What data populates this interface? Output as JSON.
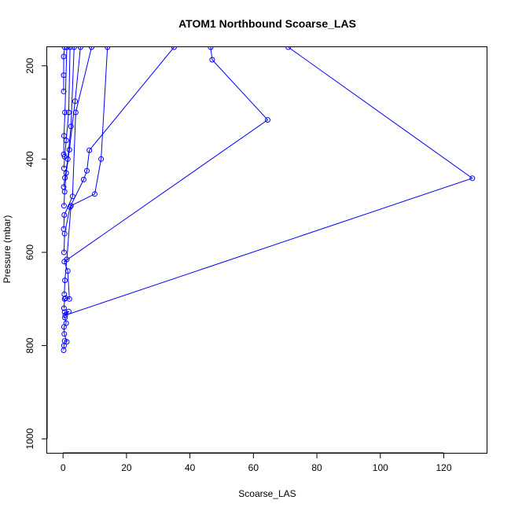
{
  "chart_data": {
    "type": "line",
    "title": "ATOM1 Northbound Scoarse_LAS",
    "xlabel": "Scoarse_LAS",
    "ylabel": "Pressure (mbar)",
    "xlim": [
      -5,
      133.5
    ],
    "ylim": [
      1030,
      160
    ],
    "y_reversed": true,
    "x_ticks": [
      0,
      20,
      40,
      60,
      80,
      100,
      120
    ],
    "y_ticks": [
      200,
      400,
      600,
      800,
      1000
    ],
    "grid": false,
    "legend": "none",
    "series_color": "#0000ff",
    "marker": "open-circle",
    "series": [
      {
        "points": [
          [
            0.2,
            810
          ],
          [
            0.3,
            800
          ],
          [
            0.5,
            790
          ],
          [
            1.2,
            792
          ],
          [
            0.4,
            775
          ],
          [
            0.3,
            760
          ],
          [
            1.0,
            752
          ],
          [
            0.6,
            740
          ],
          [
            0.5,
            728
          ],
          [
            1.8,
            727
          ],
          [
            0.7,
            735
          ],
          [
            129,
            441
          ],
          [
            71,
            160
          ]
        ]
      },
      {
        "points": [
          [
            0.3,
            720
          ],
          [
            0.5,
            700
          ],
          [
            0.8,
            698
          ],
          [
            2.0,
            700
          ],
          [
            1.5,
            640
          ],
          [
            0.4,
            620
          ],
          [
            64.5,
            316
          ],
          [
            47,
            187
          ],
          [
            46.5,
            160
          ]
        ]
      },
      {
        "points": [
          [
            0.4,
            690
          ],
          [
            0.6,
            660
          ],
          [
            1.2,
            615
          ],
          [
            2.5,
            500
          ],
          [
            10,
            475
          ],
          [
            12,
            400
          ],
          [
            14,
            160
          ]
        ]
      },
      {
        "points": [
          [
            0.3,
            600
          ],
          [
            0.5,
            560
          ],
          [
            2.2,
            503
          ],
          [
            6.5,
            444
          ],
          [
            7.5,
            425
          ],
          [
            8.3,
            381
          ],
          [
            35,
            160
          ]
        ]
      },
      {
        "points": [
          [
            0.2,
            550
          ],
          [
            0.4,
            520
          ],
          [
            3.0,
            480
          ],
          [
            4.0,
            300
          ],
          [
            9,
            160
          ]
        ]
      },
      {
        "points": [
          [
            0.3,
            500
          ],
          [
            0.5,
            470
          ],
          [
            1.0,
            430
          ],
          [
            2.0,
            380
          ],
          [
            3.8,
            276
          ],
          [
            5.5,
            160
          ]
        ]
      },
      {
        "points": [
          [
            0.2,
            460
          ],
          [
            0.6,
            440
          ],
          [
            1.5,
            400
          ],
          [
            2.5,
            330
          ],
          [
            3.5,
            160
          ]
        ]
      },
      {
        "points": [
          [
            0.3,
            420
          ],
          [
            0.5,
            395
          ],
          [
            1.0,
            360
          ],
          [
            1.8,
            300
          ],
          [
            2.2,
            160
          ]
        ]
      },
      {
        "points": [
          [
            0.2,
            390
          ],
          [
            0.3,
            350
          ],
          [
            0.6,
            300
          ],
          [
            1.2,
            160
          ]
        ]
      },
      {
        "points": [
          [
            0.2,
            255
          ],
          [
            0.2,
            220
          ],
          [
            0.2,
            180
          ],
          [
            0.5,
            160
          ]
        ]
      }
    ]
  }
}
